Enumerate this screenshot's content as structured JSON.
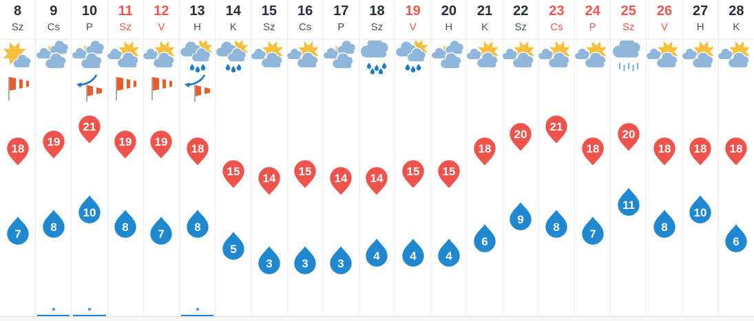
{
  "widget": {
    "type": "21-day-weather-forecast",
    "language": "hu"
  },
  "colors": {
    "high_pin": "#f0534b",
    "low_drop": "#2088d0",
    "holiday_text": "#f4564e",
    "day_number_text": "#25303c",
    "day_abbrev_text": "#47525e",
    "cloud": "#8fb7dc",
    "sun": "#f7bf3e",
    "raindrop": "#1e7dc8",
    "windsock_orange": "#e85d2a",
    "front_blue": "#2277c8",
    "precip_underline": "#1f86d0",
    "precip_dot": "#5aa7e0",
    "column_divider": "#ececec"
  },
  "days": [
    {
      "date": "8",
      "dow": "Sz",
      "holiday": false,
      "icon": "sun-small-cloud",
      "wind": "windsock",
      "high": 18,
      "low": 7,
      "precip_mark": false
    },
    {
      "date": "9",
      "dow": "Cs",
      "holiday": false,
      "icon": "sun-two-clouds",
      "wind": null,
      "high": 19,
      "low": 8,
      "precip_mark": true
    },
    {
      "date": "10",
      "dow": "P",
      "holiday": false,
      "icon": "sun-two-clouds",
      "wind": "front-windsock",
      "high": 21,
      "low": 10,
      "precip_mark": true
    },
    {
      "date": "11",
      "dow": "Sz",
      "holiday": true,
      "icon": "partly-cloudy",
      "wind": "windsock",
      "high": 19,
      "low": 8,
      "precip_mark": false
    },
    {
      "date": "12",
      "dow": "V",
      "holiday": true,
      "icon": "partly-cloudy",
      "wind": "windsock",
      "high": 19,
      "low": 7,
      "precip_mark": false
    },
    {
      "date": "13",
      "dow": "H",
      "holiday": false,
      "icon": "sun-rain",
      "wind": "front-windsock",
      "high": 18,
      "low": 8,
      "precip_mark": true
    },
    {
      "date": "14",
      "dow": "K",
      "holiday": false,
      "icon": "sun-rain",
      "wind": null,
      "high": 15,
      "low": 5,
      "precip_mark": false
    },
    {
      "date": "15",
      "dow": "Sz",
      "holiday": false,
      "icon": "partly-cloudy",
      "wind": null,
      "high": 14,
      "low": 3,
      "precip_mark": false
    },
    {
      "date": "16",
      "dow": "Cs",
      "holiday": false,
      "icon": "partly-cloudy",
      "wind": null,
      "high": 15,
      "low": 3,
      "precip_mark": false
    },
    {
      "date": "17",
      "dow": "P",
      "holiday": false,
      "icon": "sun-two-clouds",
      "wind": null,
      "high": 14,
      "low": 3,
      "precip_mark": false
    },
    {
      "date": "18",
      "dow": "Sz",
      "holiday": false,
      "icon": "rain",
      "wind": null,
      "high": 14,
      "low": 4,
      "precip_mark": false
    },
    {
      "date": "19",
      "dow": "V",
      "holiday": true,
      "icon": "sun-rain",
      "wind": null,
      "high": 15,
      "low": 4,
      "precip_mark": false
    },
    {
      "date": "20",
      "dow": "H",
      "holiday": false,
      "icon": "sun-two-clouds",
      "wind": null,
      "high": 15,
      "low": 4,
      "precip_mark": false
    },
    {
      "date": "21",
      "dow": "K",
      "holiday": false,
      "icon": "partly-cloudy",
      "wind": null,
      "high": 18,
      "low": 6,
      "precip_mark": false
    },
    {
      "date": "22",
      "dow": "Sz",
      "holiday": false,
      "icon": "partly-cloudy",
      "wind": null,
      "high": 20,
      "low": 9,
      "precip_mark": false
    },
    {
      "date": "23",
      "dow": "Cs",
      "holiday": true,
      "icon": "partly-cloudy",
      "wind": null,
      "high": 21,
      "low": 8,
      "precip_mark": false
    },
    {
      "date": "24",
      "dow": "P",
      "holiday": true,
      "icon": "partly-cloudy",
      "wind": null,
      "high": 18,
      "low": 7,
      "precip_mark": false
    },
    {
      "date": "25",
      "dow": "Sz",
      "holiday": true,
      "icon": "drizzle",
      "wind": null,
      "high": 20,
      "low": 11,
      "precip_mark": false
    },
    {
      "date": "26",
      "dow": "V",
      "holiday": true,
      "icon": "partly-cloudy",
      "wind": null,
      "high": 18,
      "low": 8,
      "precip_mark": false
    },
    {
      "date": "27",
      "dow": "H",
      "holiday": false,
      "icon": "partly-cloudy",
      "wind": null,
      "high": 18,
      "low": 10,
      "precip_mark": false
    },
    {
      "date": "28",
      "dow": "K",
      "holiday": false,
      "icon": "partly-cloudy",
      "wind": null,
      "high": 18,
      "low": 6,
      "precip_mark": false
    }
  ]
}
